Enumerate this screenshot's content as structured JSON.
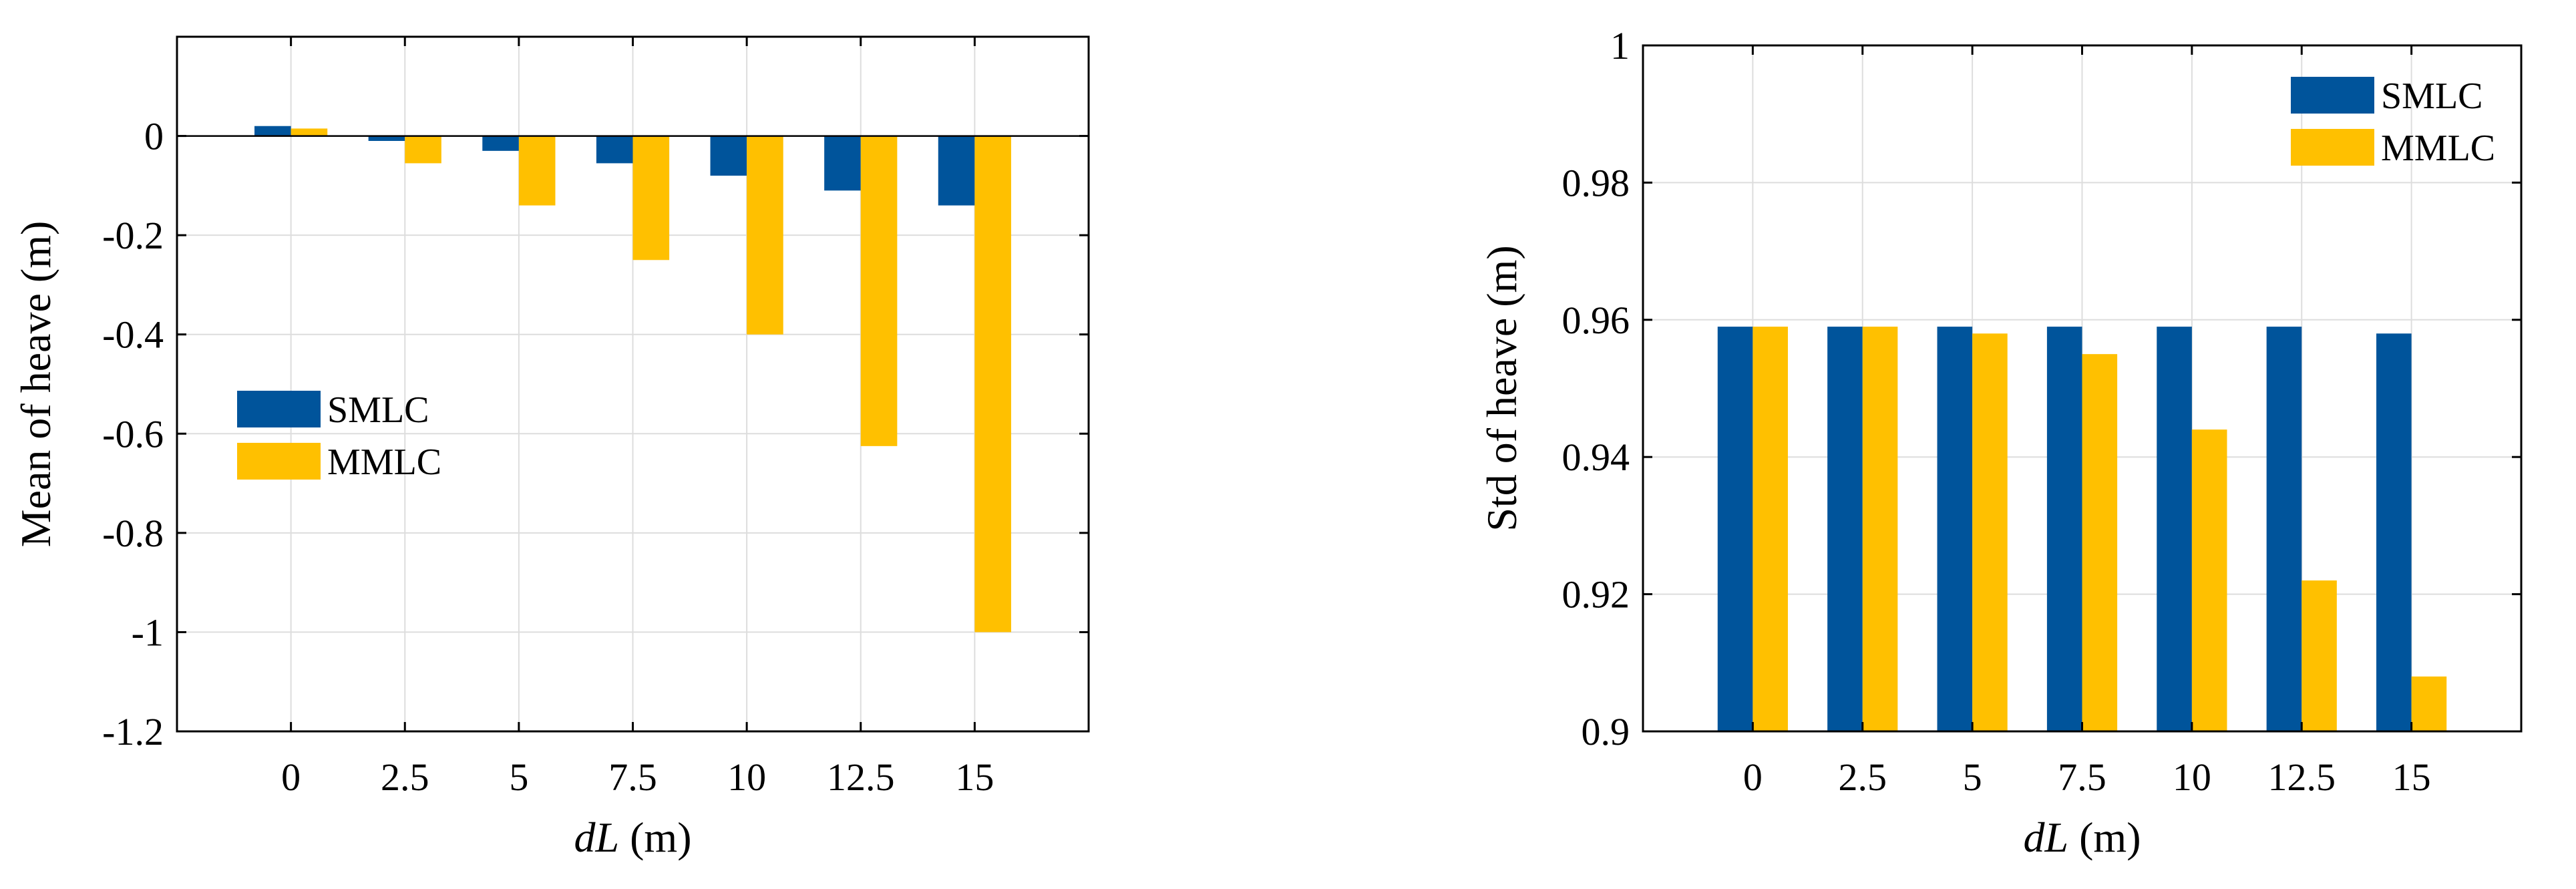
{
  "colors": {
    "smlc": "#00549B",
    "mmlc": "#FFC000",
    "grid": "#DDDDDD",
    "axis": "#000000"
  },
  "chart_data": [
    {
      "type": "bar",
      "categories": [
        "0",
        "2.5",
        "5",
        "7.5",
        "10",
        "12.5",
        "15"
      ],
      "xlabel_italic": "dL",
      "xlabel_unit": " (m)",
      "ylabel": "Mean of heave (m)",
      "ylim": [
        -1.2,
        0.2
      ],
      "yticks": [
        0,
        -0.2,
        -0.4,
        -0.6,
        -0.8,
        -1,
        -1.2
      ],
      "ytick_labels": [
        "0",
        "-0.2",
        "-0.4",
        "-0.6",
        "-0.8",
        "-1",
        "-1.2"
      ],
      "grid": true,
      "legend_position": "middle-left",
      "series": [
        {
          "name": "SMLC",
          "values": [
            0.02,
            -0.01,
            -0.03,
            -0.055,
            -0.08,
            -0.11,
            -0.14
          ]
        },
        {
          "name": "MMLC",
          "values": [
            0.015,
            -0.055,
            -0.14,
            -0.25,
            -0.4,
            -0.625,
            -1.0
          ]
        }
      ]
    },
    {
      "type": "bar",
      "categories": [
        "0",
        "2.5",
        "5",
        "7.5",
        "10",
        "12.5",
        "15"
      ],
      "xlabel_italic": "dL",
      "xlabel_unit": " (m)",
      "ylabel": "Std of heave (m)",
      "ylim": [
        0.9,
        1.0
      ],
      "yticks": [
        1,
        0.98,
        0.96,
        0.94,
        0.92,
        0.9
      ],
      "ytick_labels": [
        "1",
        "0.98",
        "0.96",
        "0.94",
        "0.92",
        "0.9"
      ],
      "grid": true,
      "legend_position": "top-right",
      "series": [
        {
          "name": "SMLC",
          "values": [
            0.959,
            0.959,
            0.959,
            0.959,
            0.959,
            0.959,
            0.958
          ]
        },
        {
          "name": "MMLC",
          "values": [
            0.959,
            0.959,
            0.958,
            0.955,
            0.944,
            0.922,
            0.908
          ]
        }
      ]
    }
  ]
}
